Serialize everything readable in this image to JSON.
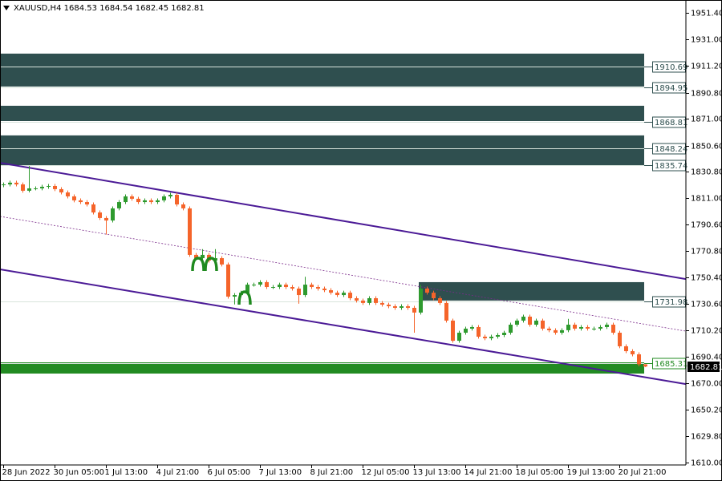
{
  "chart_data": {
    "type": "candlestick",
    "title": "XAUUSD,H4",
    "categories": [
      "28 Jun 2022",
      null,
      null,
      null,
      null,
      null,
      null,
      null,
      "30 Jun 05:00",
      null,
      null,
      null,
      null,
      null,
      null,
      null,
      "1 Jul 13:00",
      null,
      null,
      null,
      null,
      null,
      null,
      null,
      "4 Jul 21:00",
      null,
      null,
      null,
      null,
      null,
      null,
      null,
      "6 Jul 05:00",
      null,
      null,
      null,
      null,
      null,
      null,
      null,
      "7 Jul 13:00",
      null,
      null,
      null,
      null,
      null,
      null,
      null,
      "8 Jul 21:00",
      null,
      null,
      null,
      null,
      null,
      null,
      null,
      "12 Jul 05:00",
      null,
      null,
      null,
      null,
      null,
      null,
      null,
      "13 Jul 13:00",
      null,
      null,
      null,
      null,
      null,
      null,
      null,
      "14 Jul 21:00",
      null,
      null,
      null,
      null,
      null,
      null,
      null,
      "18 Jul 05:00",
      null,
      null,
      null,
      null,
      null,
      null,
      null,
      "19 Jul 13:00",
      null,
      null,
      null,
      null,
      null,
      null,
      null,
      "20 Jul 21:00",
      null,
      null,
      null,
      null
    ],
    "open": [
      1820.5,
      1821.1,
      1822.4,
      1821.1,
      1816.3,
      1818.1,
      1818.1,
      1819.3,
      1819.9,
      1817.5,
      1815.0,
      1812.0,
      1809.0,
      1807.7,
      1805.9,
      1799.8,
      1795.6,
      1793.7,
      1802.9,
      1807.7,
      1812.0,
      1810.2,
      1807.7,
      1809.0,
      1807.7,
      1809.0,
      1812.0,
      1813.2,
      1805.9,
      1802.9,
      1767.6,
      1765.1,
      1767.6,
      1763.3,
      1765.1,
      1760.3,
      1735.9,
      1737.1,
      1738.9,
      1745.0,
      1745.0,
      1746.9,
      1743.2,
      1743.2,
      1745.0,
      1743.2,
      1742.0,
      1737.1,
      1745.0,
      1743.2,
      1742.0,
      1740.8,
      1738.9,
      1737.1,
      1738.9,
      1734.7,
      1732.9,
      1731.1,
      1734.7,
      1731.1,
      1729.8,
      1728.6,
      1727.4,
      1728.6,
      1727.4,
      1723.8,
      1742.0,
      1738.9,
      1734.7,
      1731.1,
      1717.7,
      1702.4,
      1708.5,
      1711.6,
      1712.8,
      1705.5,
      1704.3,
      1705.5,
      1706.7,
      1708.5,
      1714.6,
      1717.7,
      1720.7,
      1714.6,
      1717.7,
      1711.6,
      1710.4,
      1708.5,
      1710.4,
      1714.6,
      1711.6,
      1712.8,
      1711.6,
      1711.6,
      1712.8,
      1714.6,
      1708.5,
      1698.2,
      1694.5,
      1692.1,
      1684.53
    ],
    "high": [
      1822.6,
      1823.9,
      1823.9,
      1822.6,
      1835.1,
      1819.6,
      1820.8,
      1821.4,
      1821.4,
      1819.0,
      1816.5,
      1813.5,
      1810.5,
      1809.2,
      1807.4,
      1801.3,
      1797.1,
      1804.4,
      1809.2,
      1813.5,
      1813.5,
      1811.7,
      1810.5,
      1810.5,
      1810.5,
      1813.5,
      1814.7,
      1814.7,
      1807.4,
      1804.4,
      1769.1,
      1772.0,
      1769.1,
      1772.0,
      1766.6,
      1761.8,
      1738.6,
      1740.4,
      1746.5,
      1746.5,
      1748.4,
      1748.4,
      1744.7,
      1746.5,
      1746.5,
      1744.7,
      1743.5,
      1751.0,
      1746.5,
      1744.7,
      1743.5,
      1742.3,
      1740.4,
      1740.4,
      1740.4,
      1736.2,
      1734.4,
      1736.2,
      1736.2,
      1732.6,
      1731.3,
      1730.1,
      1730.1,
      1730.1,
      1728.9,
      1745.0,
      1743.5,
      1740.4,
      1736.2,
      1732.6,
      1719.2,
      1710.0,
      1713.1,
      1714.3,
      1714.3,
      1707.0,
      1707.0,
      1708.2,
      1710.0,
      1716.1,
      1719.2,
      1722.2,
      1722.2,
      1719.2,
      1719.2,
      1713.1,
      1711.9,
      1711.9,
      1719.0,
      1716.1,
      1714.3,
      1714.3,
      1713.1,
      1714.3,
      1716.1,
      1716.1,
      1710.0,
      1699.7,
      1696.0,
      1693.6,
      1684.54
    ],
    "low": [
      1819.0,
      1819.6,
      1819.6,
      1814.8,
      1815.0,
      1816.6,
      1816.6,
      1817.8,
      1816.0,
      1813.5,
      1810.5,
      1807.5,
      1806.2,
      1804.4,
      1798.3,
      1794.1,
      1783.0,
      1792.2,
      1801.4,
      1806.2,
      1808.7,
      1806.2,
      1806.2,
      1806.2,
      1806.2,
      1807.5,
      1810.5,
      1804.4,
      1801.4,
      1766.1,
      1763.6,
      1763.6,
      1761.8,
      1761.8,
      1758.8,
      1734.4,
      1730.0,
      1735.6,
      1737.4,
      1743.5,
      1743.5,
      1741.7,
      1741.7,
      1741.7,
      1741.7,
      1740.5,
      1730.5,
      1735.6,
      1741.7,
      1740.5,
      1739.3,
      1737.4,
      1735.6,
      1735.6,
      1733.2,
      1731.4,
      1729.6,
      1729.6,
      1729.6,
      1728.3,
      1727.1,
      1725.9,
      1725.9,
      1725.9,
      1708.5,
      1722.3,
      1737.4,
      1733.2,
      1729.6,
      1716.2,
      1700.9,
      1700.9,
      1707.0,
      1710.1,
      1704.0,
      1702.8,
      1702.8,
      1704.0,
      1705.2,
      1707.0,
      1713.1,
      1716.2,
      1713.1,
      1713.1,
      1710.1,
      1708.9,
      1707.0,
      1707.0,
      1708.9,
      1710.1,
      1710.1,
      1710.1,
      1710.1,
      1710.1,
      1711.3,
      1707.0,
      1696.7,
      1693.0,
      1690.6,
      1683.0,
      1682.45
    ],
    "close": [
      1821.1,
      1822.4,
      1821.1,
      1816.3,
      1818.1,
      1818.1,
      1819.3,
      1819.9,
      1817.5,
      1815.0,
      1812.0,
      1809.0,
      1807.7,
      1805.9,
      1799.8,
      1795.6,
      1793.7,
      1802.9,
      1807.7,
      1812.0,
      1810.2,
      1807.7,
      1809.0,
      1807.7,
      1809.0,
      1812.0,
      1813.2,
      1805.9,
      1802.9,
      1767.6,
      1765.1,
      1767.6,
      1763.3,
      1765.1,
      1760.3,
      1735.9,
      1737.1,
      1738.9,
      1745.0,
      1745.0,
      1746.9,
      1743.2,
      1743.2,
      1745.0,
      1743.2,
      1742.0,
      1737.1,
      1745.0,
      1743.2,
      1742.0,
      1740.8,
      1738.9,
      1737.1,
      1738.9,
      1734.7,
      1732.9,
      1731.1,
      1734.7,
      1731.1,
      1729.8,
      1728.6,
      1727.4,
      1728.6,
      1727.4,
      1723.8,
      1742.0,
      1738.9,
      1734.7,
      1731.1,
      1717.7,
      1702.4,
      1708.5,
      1711.6,
      1712.8,
      1705.5,
      1704.3,
      1705.5,
      1706.7,
      1708.5,
      1714.6,
      1717.7,
      1720.7,
      1714.6,
      1717.7,
      1711.6,
      1710.4,
      1708.5,
      1710.4,
      1714.6,
      1711.6,
      1712.8,
      1711.6,
      1711.6,
      1712.8,
      1714.6,
      1708.5,
      1698.2,
      1694.5,
      1692.1,
      1684.53,
      1682.81
    ],
    "up_color": "#2e9a2e",
    "down_color": "#f5642a",
    "ylim": [
      1608.1,
      1961.1
    ],
    "yticks": [
      {
        "value": 1951.4,
        "label": "1951.40"
      },
      {
        "value": 1931,
        "label": "1931.00"
      },
      {
        "value": 1911.2,
        "label": "1911.20"
      },
      {
        "value": 1890.8,
        "label": "1890.80"
      },
      {
        "value": 1871,
        "label": "1871.00"
      },
      {
        "value": 1850.6,
        "label": "1850.60"
      },
      {
        "value": 1830.8,
        "label": "1830.80"
      },
      {
        "value": 1811,
        "label": "1811.00"
      },
      {
        "value": 1790.6,
        "label": "1790.60"
      },
      {
        "value": 1770.8,
        "label": "1770.80"
      },
      {
        "value": 1750.4,
        "label": "1750.40"
      },
      {
        "value": 1730.6,
        "label": "1730.60"
      },
      {
        "value": 1710.2,
        "label": "1710.20"
      },
      {
        "value": 1690.4,
        "label": "1690.40"
      },
      {
        "value": 1670,
        "label": "1670.00"
      },
      {
        "value": 1650.2,
        "label": "1650.20"
      },
      {
        "value": 1629.8,
        "label": "1629.80"
      },
      {
        "value": 1610,
        "label": "1610.00"
      }
    ],
    "zones": [
      {
        "top": 1920.4,
        "bottom": 1895.4,
        "start": 0,
        "color": "#2f4f4f"
      },
      {
        "top": 1880.8,
        "bottom": 1869.2,
        "start": 0,
        "color": "#2f4f4f"
      },
      {
        "top": 1858.3,
        "bottom": 1835.7,
        "start": 0,
        "color": "#2f4f4f"
      },
      {
        "top": 1746.9,
        "bottom": 1732.9,
        "start": 65,
        "color": "#2f4f4f"
      },
      {
        "top": 1686.0,
        "bottom": 1677.5,
        "start": 0,
        "color": "#228b22"
      }
    ],
    "levels": [
      {
        "value": 1910.69,
        "color": "#2f4f4f"
      },
      {
        "value": 1894.95,
        "color": "#2f4f4f"
      },
      {
        "value": 1868.81,
        "color": "#2f4f4f"
      },
      {
        "value": 1848.24,
        "color": "#2f4f4f"
      },
      {
        "value": 1835.74,
        "color": "#2f4f4f"
      },
      {
        "value": 1731.98,
        "color": "#2f4f4f"
      },
      {
        "value": 1685.31,
        "color": "#228b22"
      }
    ],
    "trendlines": [
      {
        "start": 1837.1,
        "end": 1754.5,
        "color": "#4b1a96",
        "style": "solid"
      },
      {
        "start": 1756.2,
        "end": 1674.7,
        "color": "#4b1a96",
        "style": "solid"
      },
      {
        "start": 1796.4,
        "end": 1714.9,
        "color": "#7a2a8a",
        "style": "dotted"
      }
    ]
  }
}
